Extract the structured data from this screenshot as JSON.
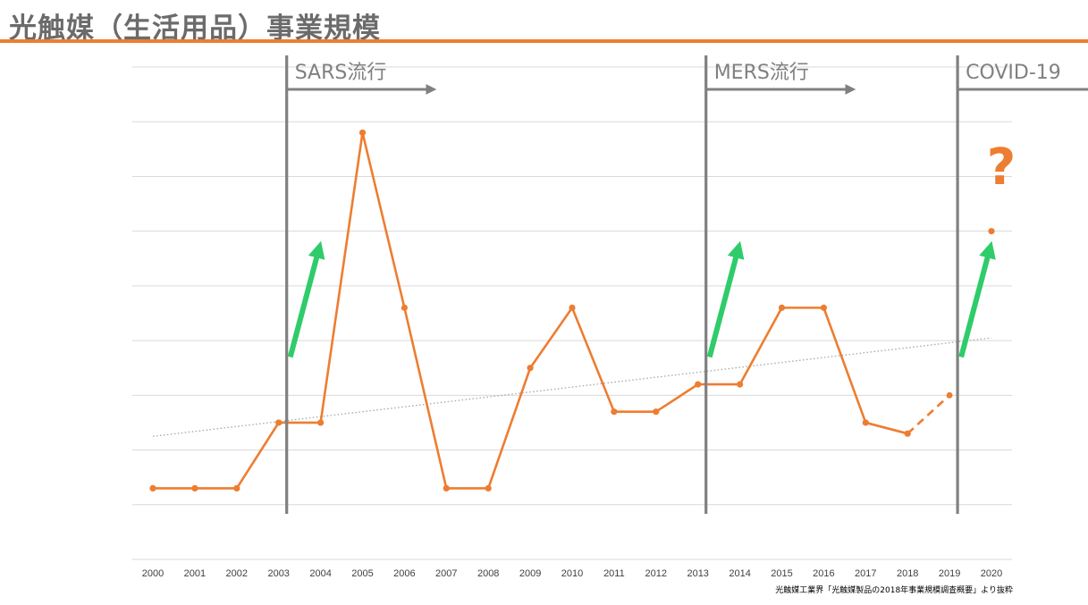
{
  "page": {
    "title": "光触媒（生活用品）事業規模",
    "source_note": "光触媒工業界「光触媒製品の2018年事業規模調査概要」より抜粋"
  },
  "annotations": {
    "question_mark": "?"
  },
  "colors": {
    "series": "#ed7d31",
    "event_line": "#808080",
    "trend": "#a6a6a6",
    "growth_arrow": "#2ecc6a",
    "grid": "#d9d9d9"
  },
  "chart_data": {
    "type": "line",
    "title": "",
    "xlabel": "",
    "ylabel": "",
    "y_axis_labels_visible": false,
    "ylim": [
      0,
      9
    ],
    "grid": "horizontal",
    "x": [
      "2000",
      "2001",
      "2002",
      "2003",
      "2004",
      "2005",
      "2006",
      "2007",
      "2008",
      "2009",
      "2010",
      "2011",
      "2012",
      "2013",
      "2014",
      "2015",
      "2016",
      "2017",
      "2018",
      "2019",
      "2020"
    ],
    "series": [
      {
        "style": "solid",
        "values": [
          1.3,
          1.3,
          1.3,
          2.5,
          2.5,
          7.8,
          4.6,
          1.3,
          1.3,
          3.5,
          4.6,
          2.7,
          2.7,
          3.2,
          3.2,
          4.6,
          4.6,
          2.5,
          2.3,
          null,
          null
        ]
      },
      {
        "style": "dashed",
        "values": [
          null,
          null,
          null,
          null,
          null,
          null,
          null,
          null,
          null,
          null,
          null,
          null,
          null,
          null,
          null,
          null,
          null,
          null,
          2.3,
          3.0,
          null
        ]
      },
      {
        "style": "point",
        "values": [
          null,
          null,
          null,
          null,
          null,
          null,
          null,
          null,
          null,
          null,
          null,
          null,
          null,
          null,
          null,
          null,
          null,
          null,
          null,
          null,
          6.0
        ]
      }
    ],
    "trendline": {
      "style": "dotted",
      "from": {
        "x": "2000",
        "y": 2.25
      },
      "to": {
        "x": "2020",
        "y": 4.05
      }
    },
    "events": [
      {
        "label": "SARS流行",
        "x": "2003"
      },
      {
        "label": "MERS流行",
        "x": "2013"
      },
      {
        "label": "COVID-19",
        "x": "2019"
      }
    ],
    "growth_arrows": [
      {
        "x_from": "2003",
        "y_from": 3.7,
        "x_to": "2004",
        "y_to": 5.9
      },
      {
        "x_from": "2013",
        "y_from": 3.7,
        "x_to": "2014",
        "y_to": 5.9
      },
      {
        "x_from": "2019",
        "y_from": 3.7,
        "x_to": "2020",
        "y_to": 5.9
      }
    ]
  }
}
